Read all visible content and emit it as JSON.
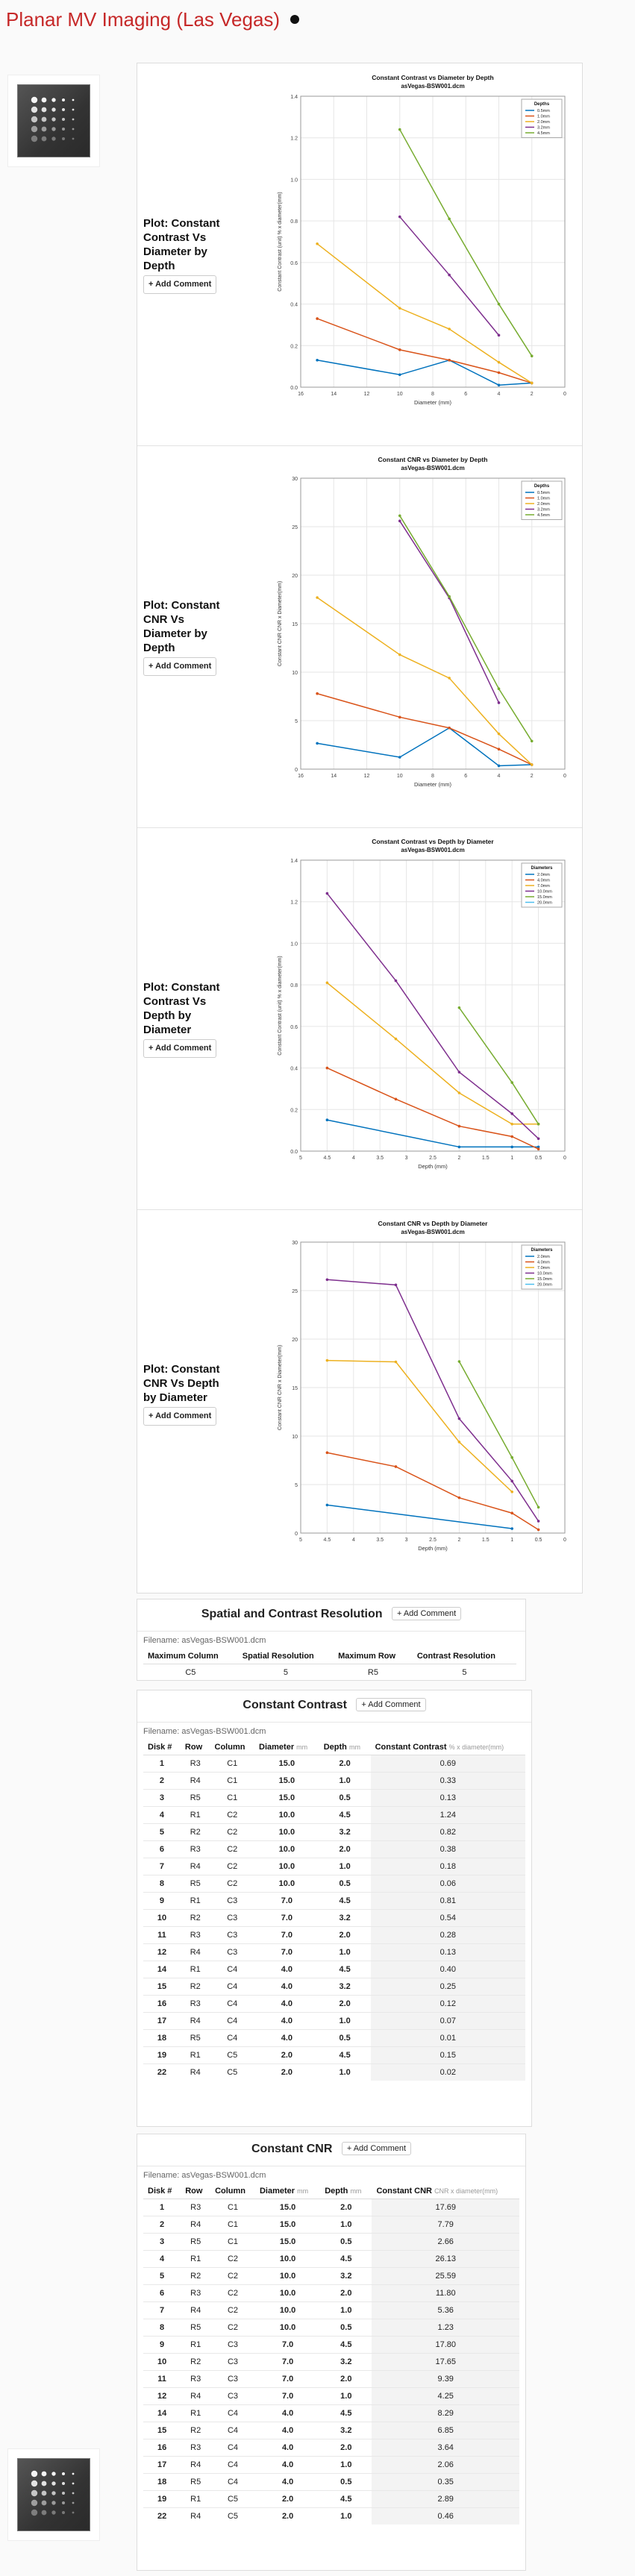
{
  "header": {
    "title": "Planar MV Imaging (Las Vegas)"
  },
  "actions": {
    "add_comment": "+ Add Comment"
  },
  "plots": [
    {
      "label": "Plot: Constant Contrast Vs Diameter by Depth",
      "chart_data": {
        "type": "line",
        "title": "Constant Contrast vs Diameter by Depth",
        "subtitle": "asVegas-BSW001.dcm",
        "xlabel": "Diameter (mm)",
        "ylabel": "Constant Contrast (unit) % x diameter(mm)",
        "xlim": [
          16,
          0
        ],
        "ylim": [
          0,
          1.4
        ],
        "xticks": [
          16,
          14,
          12,
          10,
          8,
          6,
          4,
          2,
          0
        ],
        "yticks": [
          0,
          0.2,
          0.4,
          0.6,
          0.8,
          1.0,
          1.2,
          1.4
        ],
        "legend_title": "Depths",
        "legend": "top-right",
        "grid": true,
        "series": [
          {
            "name": "0.5mm",
            "color": "#0072BD",
            "x": [
              15,
              10,
              7,
              4,
              2
            ],
            "y": [
              0.13,
              0.06,
              0.13,
              0.01,
              0.02
            ]
          },
          {
            "name": "1.0mm",
            "color": "#D95319",
            "x": [
              15,
              10,
              7,
              4,
              2
            ],
            "y": [
              0.33,
              0.18,
              0.13,
              0.07,
              0.02
            ]
          },
          {
            "name": "2.0mm",
            "color": "#EDB120",
            "x": [
              15,
              10,
              7,
              4,
              2
            ],
            "y": [
              0.69,
              0.38,
              0.28,
              0.12,
              0.02
            ]
          },
          {
            "name": "3.2mm",
            "color": "#7E2F8E",
            "x": [
              10,
              7,
              4
            ],
            "y": [
              0.82,
              0.54,
              0.25
            ]
          },
          {
            "name": "4.5mm",
            "color": "#77AC30",
            "x": [
              10,
              7,
              4,
              2
            ],
            "y": [
              1.24,
              0.81,
              0.4,
              0.15
            ]
          }
        ]
      }
    },
    {
      "label": "Plot: Constant CNR Vs Diameter by Depth",
      "chart_data": {
        "type": "line",
        "title": "Constant CNR vs Diameter by Depth",
        "subtitle": "asVegas-BSW001.dcm",
        "xlabel": "Diameter (mm)",
        "ylabel": "Constant CNR CNR x Diameter(mm)",
        "xlim": [
          16,
          0
        ],
        "ylim": [
          0,
          30
        ],
        "xticks": [
          16,
          14,
          12,
          10,
          8,
          6,
          4,
          2,
          0
        ],
        "yticks": [
          0,
          5,
          10,
          15,
          20,
          25,
          30
        ],
        "legend_title": "Depths",
        "legend": "top-right",
        "grid": true,
        "series": [
          {
            "name": "0.5mm",
            "color": "#0072BD",
            "x": [
              15,
              10,
              7,
              4,
              2
            ],
            "y": [
              2.66,
              1.23,
              4.25,
              0.35,
              0.46
            ]
          },
          {
            "name": "1.0mm",
            "color": "#D95319",
            "x": [
              15,
              10,
              7,
              4,
              2
            ],
            "y": [
              7.79,
              5.36,
              4.25,
              2.06,
              0.46
            ]
          },
          {
            "name": "2.0mm",
            "color": "#EDB120",
            "x": [
              15,
              10,
              7,
              4,
              2
            ],
            "y": [
              17.69,
              11.8,
              9.39,
              3.64,
              0.46
            ]
          },
          {
            "name": "3.2mm",
            "color": "#7E2F8E",
            "x": [
              10,
              7,
              4
            ],
            "y": [
              25.59,
              17.65,
              6.85
            ]
          },
          {
            "name": "4.5mm",
            "color": "#77AC30",
            "x": [
              10,
              7,
              4,
              2
            ],
            "y": [
              26.13,
              17.8,
              8.29,
              2.89
            ]
          }
        ]
      }
    },
    {
      "label": "Plot: Constant Contrast Vs Depth by Diameter",
      "chart_data": {
        "type": "line",
        "title": "Constant Contrast vs Depth by Diameter",
        "subtitle": "asVegas-BSW001.dcm",
        "xlabel": "Depth (mm)",
        "ylabel": "Constant Contrast (unit) % x diameter(mm)",
        "xlim": [
          5,
          0
        ],
        "ylim": [
          0,
          1.4
        ],
        "xticks": [
          5,
          4.5,
          4,
          3.5,
          3,
          2.5,
          2,
          1.5,
          1,
          0.5,
          0
        ],
        "yticks": [
          0,
          0.2,
          0.4,
          0.6,
          0.8,
          1.0,
          1.2,
          1.4
        ],
        "legend_title": "Diameters",
        "legend": "top-right",
        "grid": true,
        "series": [
          {
            "name": "2.0mm",
            "color": "#0072BD",
            "x": [
              4.5,
              2,
              1,
              0.5
            ],
            "y": [
              0.15,
              0.02,
              0.02,
              0.02
            ]
          },
          {
            "name": "4.0mm",
            "color": "#D95319",
            "x": [
              4.5,
              3.2,
              2,
              1,
              0.5
            ],
            "y": [
              0.4,
              0.25,
              0.12,
              0.07,
              0.01
            ]
          },
          {
            "name": "7.0mm",
            "color": "#EDB120",
            "x": [
              4.5,
              3.2,
              2,
              1,
              0.5
            ],
            "y": [
              0.81,
              0.54,
              0.28,
              0.13,
              0.13
            ]
          },
          {
            "name": "10.0mm",
            "color": "#7E2F8E",
            "x": [
              4.5,
              3.2,
              2,
              1,
              0.5
            ],
            "y": [
              1.24,
              0.82,
              0.38,
              0.18,
              0.06
            ]
          },
          {
            "name": "15.0mm",
            "color": "#77AC30",
            "x": [
              2,
              1,
              0.5
            ],
            "y": [
              0.69,
              0.33,
              0.13
            ]
          },
          {
            "name": "20.0mm",
            "color": "#4DBEEE",
            "x": [],
            "y": []
          }
        ]
      }
    },
    {
      "label": "Plot: Constant CNR Vs Depth by Diameter",
      "chart_data": {
        "type": "line",
        "title": "Constant CNR vs Depth by Diameter",
        "subtitle": "asVegas-BSW001.dcm",
        "xlabel": "Depth (mm)",
        "ylabel": "Constant CNR CNR x Diameter(mm)",
        "xlim": [
          5,
          0
        ],
        "ylim": [
          0,
          30
        ],
        "xticks": [
          5,
          4.5,
          4,
          3.5,
          3,
          2.5,
          2,
          1.5,
          1,
          0.5,
          0
        ],
        "yticks": [
          0,
          5,
          10,
          15,
          20,
          25,
          30
        ],
        "legend_title": "Diameters",
        "legend": "top-right",
        "grid": true,
        "series": [
          {
            "name": "2.0mm",
            "color": "#0072BD",
            "x": [
              4.5,
              1
            ],
            "y": [
              2.89,
              0.46
            ]
          },
          {
            "name": "4.0mm",
            "color": "#D95319",
            "x": [
              4.5,
              3.2,
              2,
              1,
              0.5
            ],
            "y": [
              8.29,
              6.85,
              3.64,
              2.06,
              0.35
            ]
          },
          {
            "name": "7.0mm",
            "color": "#EDB120",
            "x": [
              4.5,
              3.2,
              2,
              1
            ],
            "y": [
              17.8,
              17.65,
              9.39,
              4.25
            ]
          },
          {
            "name": "10.0mm",
            "color": "#7E2F8E",
            "x": [
              4.5,
              3.2,
              2,
              1,
              0.5
            ],
            "y": [
              26.13,
              25.59,
              11.8,
              5.36,
              1.23
            ]
          },
          {
            "name": "15.0mm",
            "color": "#77AC30",
            "x": [
              2,
              1,
              0.5
            ],
            "y": [
              17.69,
              7.79,
              2.66
            ]
          },
          {
            "name": "20.0mm",
            "color": "#4DBEEE",
            "x": [],
            "y": []
          }
        ]
      }
    }
  ],
  "spatial": {
    "title": "Spatial and Contrast Resolution",
    "filename": "Filename: asVegas-BSW001.dcm",
    "columns": [
      "Maximum Column",
      "Spatial Resolution",
      "Maximum Row",
      "Contrast Resolution"
    ],
    "row": [
      "C5",
      "5",
      "R5",
      "5"
    ]
  },
  "contrast": {
    "title": "Constant Contrast",
    "filename": "Filename: asVegas-BSW001.dcm",
    "columns": [
      "Disk #",
      "Row",
      "Column",
      "Diameter",
      "Depth",
      "Constant Contrast"
    ],
    "units": [
      "",
      "",
      "",
      "mm",
      "mm",
      "% x diameter(mm)"
    ],
    "rows": [
      [
        "1",
        "R3",
        "C1",
        "15.0",
        "2.0",
        "0.69"
      ],
      [
        "2",
        "R4",
        "C1",
        "15.0",
        "1.0",
        "0.33"
      ],
      [
        "3",
        "R5",
        "C1",
        "15.0",
        "0.5",
        "0.13"
      ],
      [
        "4",
        "R1",
        "C2",
        "10.0",
        "4.5",
        "1.24"
      ],
      [
        "5",
        "R2",
        "C2",
        "10.0",
        "3.2",
        "0.82"
      ],
      [
        "6",
        "R3",
        "C2",
        "10.0",
        "2.0",
        "0.38"
      ],
      [
        "7",
        "R4",
        "C2",
        "10.0",
        "1.0",
        "0.18"
      ],
      [
        "8",
        "R5",
        "C2",
        "10.0",
        "0.5",
        "0.06"
      ],
      [
        "9",
        "R1",
        "C3",
        "7.0",
        "4.5",
        "0.81"
      ],
      [
        "10",
        "R2",
        "C3",
        "7.0",
        "3.2",
        "0.54"
      ],
      [
        "11",
        "R3",
        "C3",
        "7.0",
        "2.0",
        "0.28"
      ],
      [
        "12",
        "R4",
        "C3",
        "7.0",
        "1.0",
        "0.13"
      ],
      [
        "14",
        "R1",
        "C4",
        "4.0",
        "4.5",
        "0.40"
      ],
      [
        "15",
        "R2",
        "C4",
        "4.0",
        "3.2",
        "0.25"
      ],
      [
        "16",
        "R3",
        "C4",
        "4.0",
        "2.0",
        "0.12"
      ],
      [
        "17",
        "R4",
        "C4",
        "4.0",
        "1.0",
        "0.07"
      ],
      [
        "18",
        "R5",
        "C4",
        "4.0",
        "0.5",
        "0.01"
      ],
      [
        "19",
        "R1",
        "C5",
        "2.0",
        "4.5",
        "0.15"
      ],
      [
        "22",
        "R4",
        "C5",
        "2.0",
        "1.0",
        "0.02"
      ]
    ]
  },
  "cnr": {
    "title": "Constant CNR",
    "filename": "Filename: asVegas-BSW001.dcm",
    "columns": [
      "Disk #",
      "Row",
      "Column",
      "Diameter",
      "Depth",
      "Constant CNR"
    ],
    "units": [
      "",
      "",
      "",
      "mm",
      "mm",
      "CNR x diameter(mm)"
    ],
    "rows": [
      [
        "1",
        "R3",
        "C1",
        "15.0",
        "2.0",
        "17.69"
      ],
      [
        "2",
        "R4",
        "C1",
        "15.0",
        "1.0",
        "7.79"
      ],
      [
        "3",
        "R5",
        "C1",
        "15.0",
        "0.5",
        "2.66"
      ],
      [
        "4",
        "R1",
        "C2",
        "10.0",
        "4.5",
        "26.13"
      ],
      [
        "5",
        "R2",
        "C2",
        "10.0",
        "3.2",
        "25.59"
      ],
      [
        "6",
        "R3",
        "C2",
        "10.0",
        "2.0",
        "11.80"
      ],
      [
        "7",
        "R4",
        "C2",
        "10.0",
        "1.0",
        "5.36"
      ],
      [
        "8",
        "R5",
        "C2",
        "10.0",
        "0.5",
        "1.23"
      ],
      [
        "9",
        "R1",
        "C3",
        "7.0",
        "4.5",
        "17.80"
      ],
      [
        "10",
        "R2",
        "C3",
        "7.0",
        "3.2",
        "17.65"
      ],
      [
        "11",
        "R3",
        "C3",
        "7.0",
        "2.0",
        "9.39"
      ],
      [
        "12",
        "R4",
        "C3",
        "7.0",
        "1.0",
        "4.25"
      ],
      [
        "14",
        "R1",
        "C4",
        "4.0",
        "4.5",
        "8.29"
      ],
      [
        "15",
        "R2",
        "C4",
        "4.0",
        "3.2",
        "6.85"
      ],
      [
        "16",
        "R3",
        "C4",
        "4.0",
        "2.0",
        "3.64"
      ],
      [
        "17",
        "R4",
        "C4",
        "4.0",
        "1.0",
        "2.06"
      ],
      [
        "18",
        "R5",
        "C4",
        "4.0",
        "0.5",
        "0.35"
      ],
      [
        "19",
        "R1",
        "C5",
        "2.0",
        "4.5",
        "2.89"
      ],
      [
        "22",
        "R4",
        "C5",
        "2.0",
        "1.0",
        "0.46"
      ]
    ]
  }
}
